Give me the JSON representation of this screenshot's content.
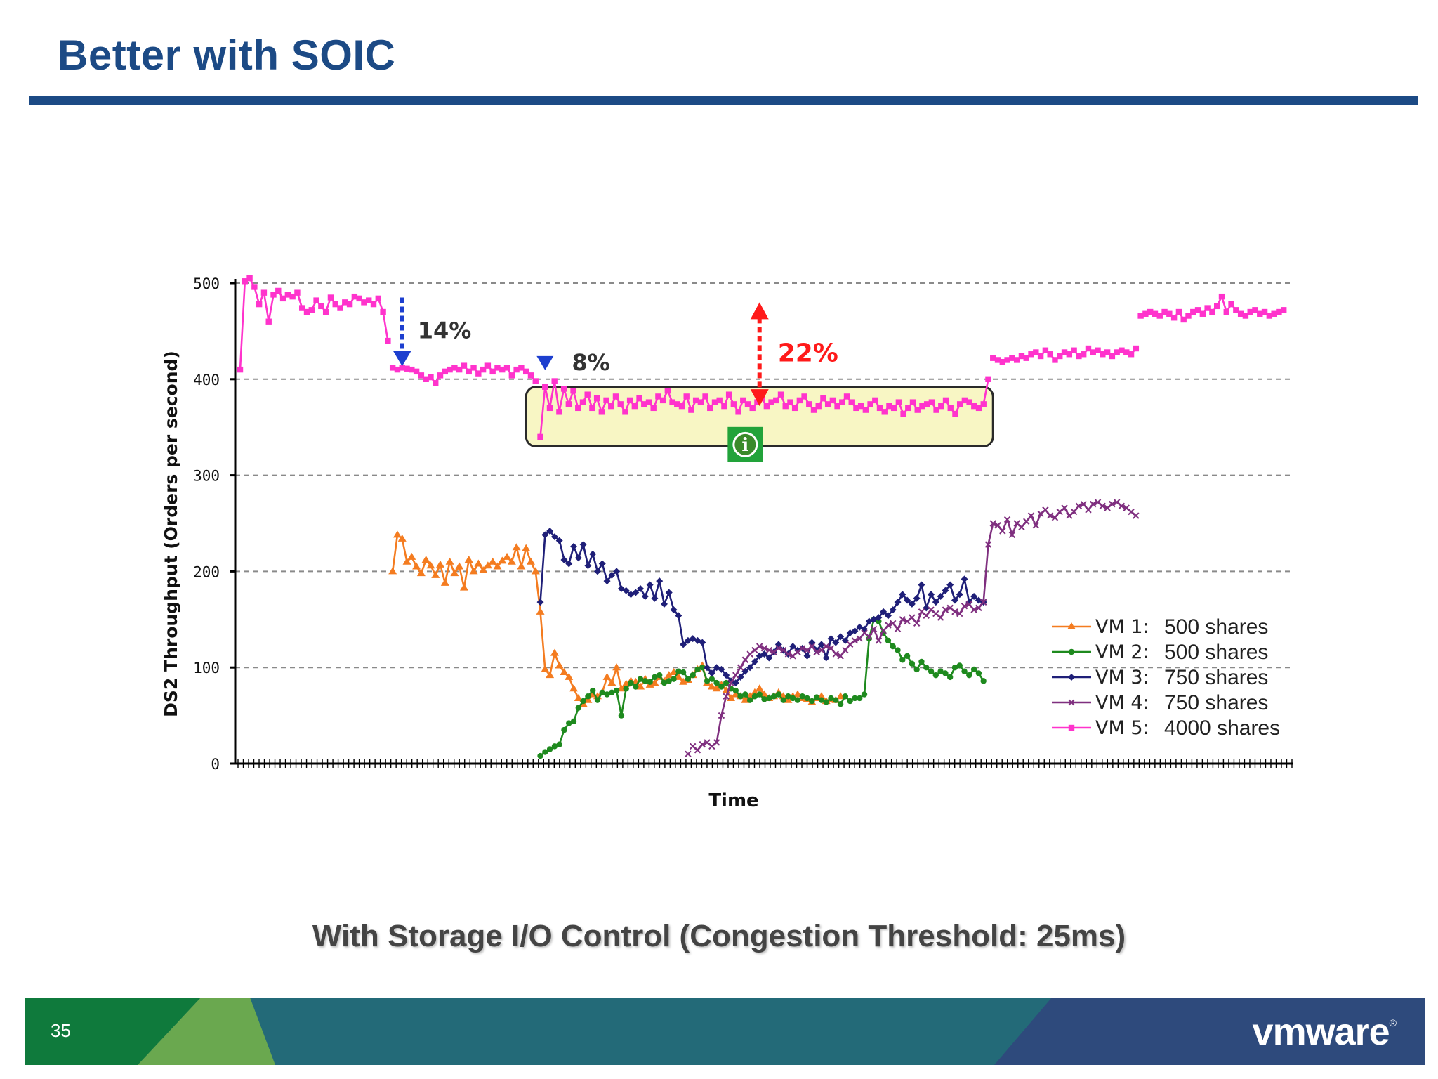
{
  "slide": {
    "title": "Better with SOIC",
    "caption": "With Storage I/O Control (Congestion Threshold: 25ms)",
    "page_number": "35",
    "logo": "vmware",
    "colors": {
      "title": "#1c4a85",
      "footer_green": "#0f7a3c",
      "footer_light_green": "#6aa84f",
      "footer_teal": "#236a78",
      "footer_navy": "#2e4a7c"
    }
  },
  "chart_data": {
    "type": "line",
    "title": "",
    "xlabel": "Time",
    "ylabel": "DS2 Throughput (Orders per second)",
    "ylim": [
      0,
      500
    ],
    "yticks": [
      0,
      100,
      200,
      300,
      400,
      500
    ],
    "xlim": [
      0,
      220
    ],
    "grid": "horizontal dashed",
    "legend": "bottom-right",
    "series": [
      {
        "name": "VM 1:",
        "legend_value": "500 shares",
        "color": "#f47c20",
        "marker": "triangle",
        "segments": [
          {
            "x_start": 32,
            "x_end": 62,
            "values": [
              200,
              238,
              234,
              210,
              215,
              205,
              198,
              212,
              206,
              196,
              207,
              188,
              210,
              198,
              205,
              183,
              212,
              200,
              208,
              201,
              206,
              210,
              205,
              211,
              215,
              210,
              225,
              205,
              224,
              210,
              200
            ]
          },
          {
            "x_start": 62,
            "x_end": 126,
            "values": [
              200,
              158,
              98,
              92,
              115,
              102,
              95,
              90,
              78,
              68,
              62,
              66,
              72,
              70,
              74,
              90,
              84,
              100,
              78,
              83,
              86,
              85,
              80,
              88,
              82,
              84,
              90,
              86,
              92,
              95,
              90,
              85,
              87,
              92,
              98,
              102,
              84,
              80,
              78,
              82,
              76,
              68,
              72,
              70,
              66,
              70,
              74,
              78,
              72,
              68,
              70,
              74,
              70,
              66,
              70,
              72,
              68,
              67,
              64,
              68,
              70,
              65,
              67,
              66,
              70
            ]
          }
        ]
      },
      {
        "name": "VM 2:",
        "legend_value": "500 shares",
        "color": "#1e8a1e",
        "marker": "circle",
        "segments": [
          {
            "x_start": 63,
            "x_end": 156,
            "values": [
              8,
              12,
              15,
              18,
              20,
              35,
              42,
              44,
              58,
              65,
              70,
              76,
              66,
              74,
              72,
              74,
              76,
              50,
              78,
              84,
              80,
              88,
              86,
              85,
              90,
              92,
              84,
              86,
              88,
              96,
              95,
              88,
              92,
              98,
              100,
              86,
              88,
              84,
              80,
              84,
              78,
              76,
              70,
              72,
              66,
              70,
              72,
              67,
              68,
              70,
              72,
              66,
              70,
              68,
              66,
              70,
              68,
              65,
              69,
              66,
              64,
              68,
              66,
              62,
              70,
              65,
              68,
              68,
              72,
              130,
              150,
              148,
              136,
              128,
              122,
              118,
              108,
              112,
              104,
              98,
              106,
              100,
              96,
              92,
              96,
              94,
              90,
              100,
              102,
              96,
              92,
              98,
              94,
              86
            ]
          }
        ]
      },
      {
        "name": "VM 3:",
        "legend_value": "750 shares",
        "color": "#1f1f78",
        "marker": "diamond",
        "segments": [
          {
            "x_start": 63,
            "x_end": 156,
            "values": [
              168,
              238,
              242,
              236,
              232,
              212,
              208,
              226,
              214,
              228,
              206,
              218,
              200,
              208,
              190,
              196,
              200,
              182,
              180,
              176,
              178,
              182,
              174,
              186,
              172,
              190,
              166,
              178,
              160,
              154,
              124,
              128,
              130,
              128,
              126,
              100,
              94,
              100,
              98,
              92,
              86,
              84,
              90,
              96,
              100,
              106,
              112,
              114,
              110,
              116,
              124,
              118,
              114,
              122,
              118,
              120,
              112,
              126,
              118,
              124,
              110,
              130,
              126,
              132,
              128,
              136,
              138,
              142,
              140,
              148,
              150,
              152,
              158,
              154,
              160,
              168,
              176,
              170,
              166,
              172,
              186,
              162,
              176,
              168,
              174,
              180,
              186,
              170,
              176,
              192,
              168,
              174,
              170,
              168
            ]
          }
        ]
      },
      {
        "name": "VM 4:",
        "legend_value": "750 shares",
        "color": "#7f2f7f",
        "marker": "x",
        "segments": [
          {
            "x_start": 94,
            "x_end": 94,
            "values": [
              10
            ]
          },
          {
            "x_start": 95,
            "x_end": 126,
            "values": [
              18,
              14,
              20,
              22,
              18,
              22,
              50,
              70,
              84,
              92,
              100,
              108,
              114,
              118,
              122,
              120,
              118,
              116,
              120,
              118,
              114,
              112,
              116,
              120,
              118,
              122,
              116,
              118,
              122,
              120,
              114,
              112
            ]
          },
          {
            "x_start": 126,
            "x_end": 156,
            "values": [
              112,
              118,
              124,
              128,
              130,
              136,
              132,
              140,
              128,
              138,
              144,
              146,
              140,
              150,
              148,
              152,
              146,
              158,
              154,
              160,
              156,
              152,
              160,
              162,
              158,
              156,
              164,
              166,
              160,
              162,
              168
            ]
          },
          {
            "x_start": 156,
            "x_end": 188,
            "values": [
              168,
              228,
              250,
              248,
              242,
              254,
              238,
              250,
              246,
              252,
              258,
              248,
              260,
              264,
              258,
              256,
              262,
              266,
              258,
              262,
              268,
              270,
              264,
              270,
              272,
              268,
              266,
              270,
              272,
              268,
              266,
              262,
              258
            ]
          }
        ]
      },
      {
        "name": "VM 5:",
        "legend_value": "4000 shares",
        "color": "#ff33cc",
        "marker": "square",
        "segments": [
          {
            "x_start": 0,
            "x_end": 31,
            "values": [
              410,
              502,
              505,
              496,
              478,
              490,
              460,
              488,
              492,
              484,
              488,
              486,
              490,
              474,
              470,
              472,
              482,
              476,
              470,
              485,
              478,
              474,
              480,
              478,
              486,
              484,
              480,
              482,
              478,
              484,
              470,
              440
            ]
          },
          {
            "x_start": 32,
            "x_end": 62,
            "values": [
              412,
              410,
              412,
              411,
              410,
              408,
              404,
              400,
              402,
              396,
              404,
              408,
              410,
              412,
              410,
              414,
              408,
              412,
              406,
              410,
              414,
              408,
              412,
              410,
              412,
              404,
              410,
              412,
              408,
              404,
              398
            ]
          },
          {
            "x_start": 63,
            "x_end": 157,
            "values": [
              340,
              392,
              370,
              398,
              366,
              390,
              374,
              388,
              370,
              376,
              384,
              370,
              380,
              366,
              378,
              372,
              382,
              374,
              366,
              378,
              372,
              380,
              374,
              376,
              370,
              382,
              378,
              388,
              376,
              374,
              372,
              382,
              368,
              378,
              376,
              382,
              370,
              376,
              378,
              372,
              384,
              374,
              366,
              378,
              374,
              370,
              376,
              380,
              372,
              376,
              378,
              384,
              372,
              376,
              370,
              378,
              382,
              374,
              368,
              372,
              380,
              374,
              378,
              372,
              376,
              382,
              376,
              370,
              372,
              368,
              374,
              378,
              370,
              366,
              372,
              370,
              376,
              364,
              370,
              376,
              368,
              372,
              374,
              376,
              368,
              372,
              378,
              370,
              364,
              374,
              378,
              376,
              372,
              370,
              374,
              400
            ]
          },
          {
            "x_start": 158,
            "x_end": 188,
            "values": [
              422,
              420,
              418,
              420,
              422,
              420,
              424,
              422,
              426,
              428,
              424,
              430,
              426,
              420,
              424,
              428,
              426,
              430,
              424,
              426,
              432,
              428,
              430,
              426,
              428,
              424,
              428,
              430,
              428,
              426,
              432
            ]
          },
          {
            "x_start": 189,
            "x_end": 219,
            "values": [
              466,
              468,
              470,
              468,
              466,
              470,
              468,
              464,
              470,
              462,
              466,
              470,
              472,
              468,
              474,
              470,
              476,
              486,
              470,
              478,
              472,
              468,
              466,
              470,
              472,
              468,
              470,
              466,
              468,
              470,
              472
            ]
          }
        ]
      }
    ],
    "annotations": {
      "drop_1": {
        "label": "14%",
        "x": 34,
        "y_from": 485,
        "y_to": 412,
        "color": "#1d3fcf"
      },
      "drop_2": {
        "label": "8%",
        "x": 64,
        "y": 408,
        "color": "#1d3fcf"
      },
      "gap": {
        "label": "22%",
        "x": 109,
        "y_from": 480,
        "y_to": 372,
        "color": "#ff1a1a"
      },
      "highlight_box": {
        "x_from": 60,
        "x_to": 158,
        "y_from": 330,
        "y_to": 392,
        "fill": "#f8f6c4"
      },
      "info_icon": {
        "x": 106,
        "y": 332,
        "symbol": "i",
        "color": "#22a33a"
      }
    }
  }
}
